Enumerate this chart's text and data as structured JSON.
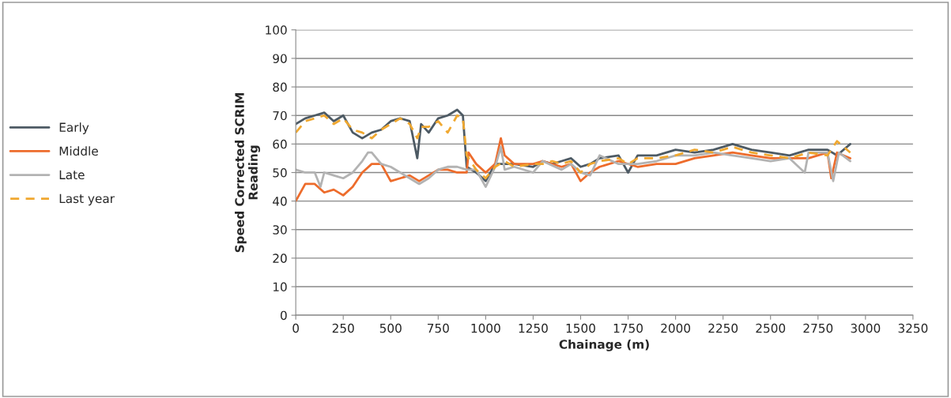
{
  "chart_data": {
    "type": "line",
    "xlabel": "Chainage (m)",
    "ylabel": "Speed Corrected SCRIM\nReading",
    "xlim": [
      0,
      3250
    ],
    "xticks": [
      0,
      250,
      500,
      750,
      1000,
      1250,
      1500,
      1750,
      2000,
      2250,
      2500,
      2750,
      3000,
      3250
    ],
    "ylim": [
      0,
      100
    ],
    "yticks": [
      0,
      10,
      20,
      30,
      40,
      50,
      60,
      70,
      80,
      90,
      100
    ],
    "grid": "y",
    "legend": "left",
    "marker": "none",
    "series": [
      {
        "name": "Early",
        "color": "#4d5a64",
        "line_style": "solid",
        "x": [
          0,
          50,
          100,
          150,
          200,
          250,
          300,
          350,
          400,
          450,
          500,
          550,
          600,
          640,
          660,
          700,
          750,
          800,
          850,
          880,
          900,
          950,
          1000,
          1050,
          1100,
          1150,
          1250,
          1300,
          1350,
          1400,
          1450,
          1500,
          1550,
          1600,
          1700,
          1750,
          1800,
          1900,
          2000,
          2100,
          2200,
          2300,
          2400,
          2500,
          2600,
          2700,
          2800,
          2850,
          2920
        ],
        "values": [
          67,
          69,
          70,
          71,
          68,
          70,
          64,
          62,
          64,
          65,
          68,
          69,
          68,
          55,
          67,
          64,
          69,
          70,
          72,
          70,
          52,
          50,
          47,
          53,
          53,
          53,
          52,
          54,
          53,
          54,
          55,
          52,
          53,
          55,
          56,
          50,
          56,
          56,
          58,
          57,
          58,
          60,
          58,
          57,
          56,
          58,
          58,
          56,
          60
        ]
      },
      {
        "name": "Middle",
        "color": "#ed6c2c",
        "line_style": "solid",
        "x": [
          0,
          50,
          100,
          150,
          200,
          250,
          300,
          350,
          400,
          450,
          500,
          550,
          600,
          650,
          700,
          750,
          800,
          850,
          900,
          910,
          950,
          1000,
          1050,
          1080,
          1100,
          1150,
          1250,
          1300,
          1400,
          1450,
          1500,
          1550,
          1600,
          1700,
          1800,
          1900,
          2000,
          2100,
          2200,
          2300,
          2400,
          2500,
          2600,
          2700,
          2800,
          2820,
          2850,
          2920
        ],
        "values": [
          40,
          46,
          46,
          43,
          44,
          42,
          45,
          50,
          53,
          53,
          47,
          48,
          49,
          47,
          49,
          51,
          51,
          50,
          50,
          57,
          53,
          50,
          53,
          62,
          56,
          53,
          53,
          54,
          52,
          53,
          47,
          50,
          52,
          54,
          52,
          53,
          53,
          55,
          56,
          57,
          56,
          55,
          55,
          55,
          57,
          48,
          57,
          55
        ]
      },
      {
        "name": "Late",
        "color": "#b3b3b3",
        "line_style": "solid",
        "x": [
          0,
          50,
          100,
          130,
          150,
          200,
          250,
          300,
          350,
          380,
          400,
          450,
          500,
          550,
          600,
          650,
          700,
          750,
          800,
          850,
          900,
          950,
          1000,
          1050,
          1080,
          1100,
          1150,
          1250,
          1300,
          1400,
          1450,
          1500,
          1550,
          1600,
          1700,
          1800,
          1900,
          2000,
          2100,
          2200,
          2300,
          2400,
          2500,
          2600,
          2680,
          2700,
          2800,
          2830,
          2860,
          2920
        ],
        "values": [
          51,
          50,
          50,
          45,
          50,
          49,
          48,
          50,
          54,
          57,
          57,
          53,
          52,
          50,
          48,
          46,
          48,
          51,
          52,
          52,
          51,
          51,
          45,
          52,
          59,
          51,
          52,
          50,
          54,
          51,
          53,
          50,
          49,
          56,
          53,
          53,
          54,
          56,
          56,
          57,
          56,
          55,
          54,
          55,
          50,
          57,
          57,
          47,
          57,
          54
        ]
      },
      {
        "name": "Last year",
        "color": "#f0a830",
        "line_style": "dashed",
        "x": [
          0,
          50,
          100,
          150,
          200,
          250,
          300,
          350,
          400,
          450,
          500,
          550,
          600,
          640,
          660,
          700,
          750,
          800,
          850,
          880,
          900,
          950,
          1000,
          1050,
          1100,
          1150,
          1250,
          1300,
          1350,
          1400,
          1450,
          1500,
          1550,
          1600,
          1700,
          1750,
          1800,
          1900,
          2000,
          2100,
          2200,
          2300,
          2400,
          2500,
          2600,
          2700,
          2800,
          2850,
          2920
        ],
        "values": [
          64,
          68,
          69,
          70,
          67,
          69,
          65,
          64,
          62,
          65,
          67,
          69,
          67,
          62,
          66,
          66,
          68,
          64,
          70,
          69,
          56,
          51,
          48,
          52,
          54,
          52,
          53,
          53,
          54,
          53,
          54,
          50,
          53,
          54,
          55,
          53,
          55,
          55,
          56,
          58,
          57,
          59,
          57,
          56,
          55,
          57,
          56,
          61,
          57
        ]
      }
    ]
  }
}
